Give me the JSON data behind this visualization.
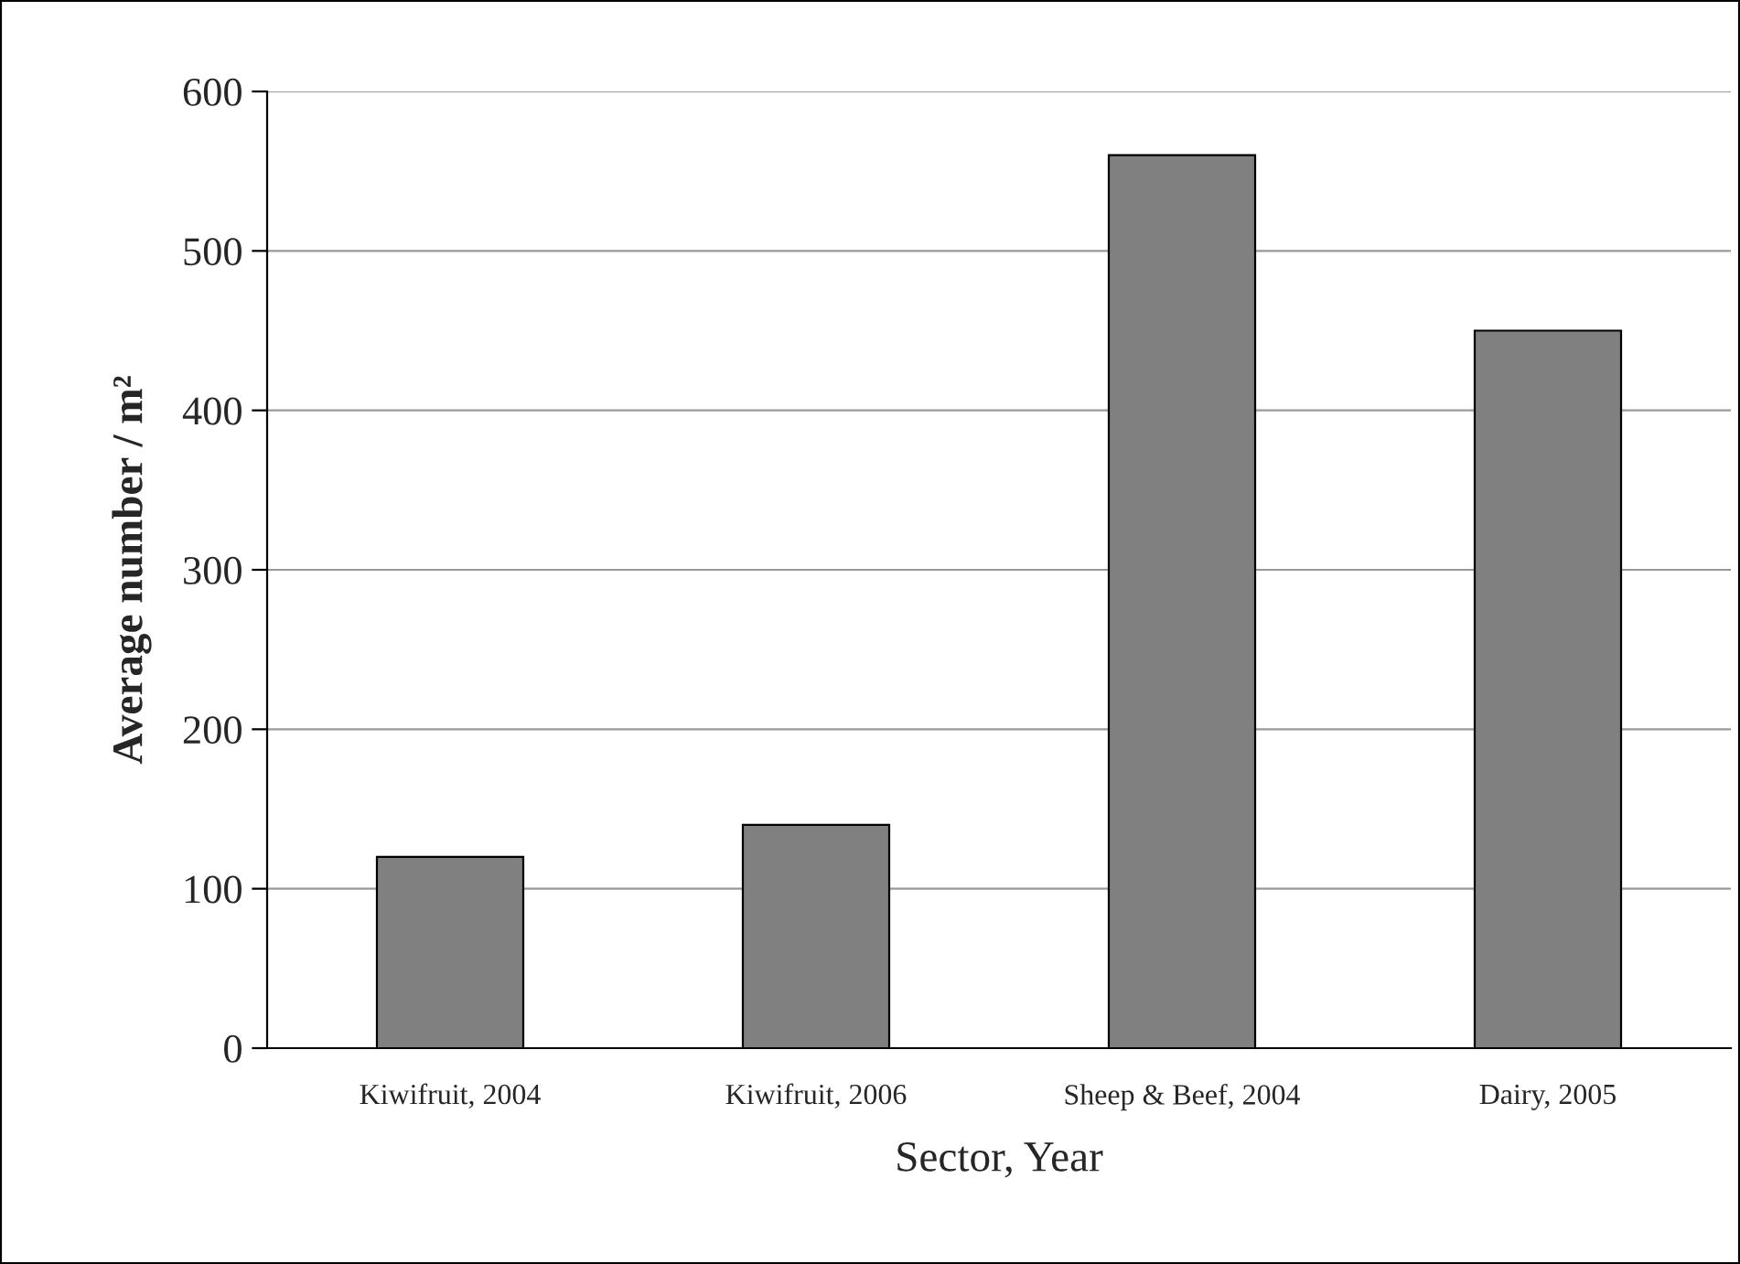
{
  "chart_data": {
    "type": "bar",
    "xlabel": "Sector, Year",
    "ylabel": "Average number / m²",
    "categories": [
      "Kiwifruit, 2004",
      "Kiwifruit, 2006",
      "Sheep & Beef, 2004",
      "Dairy, 2005"
    ],
    "values": [
      120,
      140,
      560,
      450
    ],
    "color": "#808080",
    "ylim": [
      0,
      600
    ],
    "yticks": [
      0,
      100,
      200,
      300,
      400,
      500,
      600
    ],
    "grid": "y"
  }
}
